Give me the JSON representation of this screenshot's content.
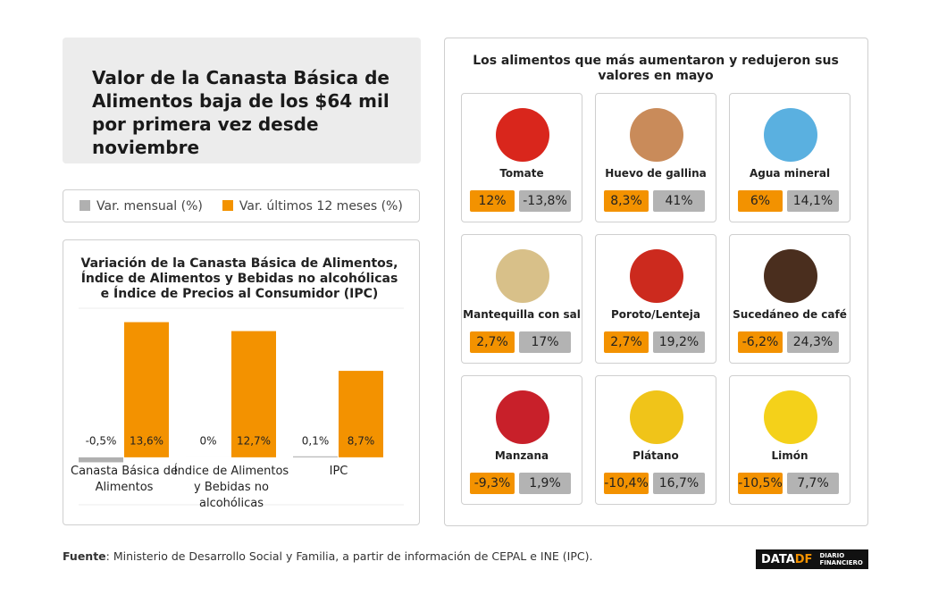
{
  "header": {
    "title": "Valor de la Canasta Básica de Alimentos baja de los $64 mil por primera vez desde noviembre"
  },
  "chart_data": {
    "type": "bar",
    "title": "Variación de la Canasta Básica de Alimentos, Índice de Alimentos y Bebidas no alcohólicas e Índice de Precios al Consumidor (IPC)",
    "categories": [
      "Canasta Básica de Alimentos",
      "Índice de Alimentos y Bebidas no alcohólicas",
      "IPC"
    ],
    "series": [
      {
        "name": "Var. mensual (%)",
        "color": "#b0b0b0",
        "values": [
          -0.5,
          0,
          0.1
        ],
        "value_labels": [
          "-0,5%",
          "0%",
          "0,1%"
        ]
      },
      {
        "name": "Var. últimos 12 meses (%)",
        "color": "#f39200",
        "values": [
          13.6,
          12.7,
          8.7
        ],
        "value_labels": [
          "13,6%",
          "12,7%",
          "8,7%"
        ]
      }
    ],
    "ylim": [
      -1,
      15
    ]
  },
  "foods": {
    "title": "Los alimentos que más aumentaron y redujeron sus valores en mayo",
    "items": [
      {
        "name": "Tomate",
        "orange": "12%",
        "gray": "-13,8%"
      },
      {
        "name": "Huevo de gallina",
        "orange": "8,3%",
        "gray": "41%"
      },
      {
        "name": "Agua mineral",
        "orange": "6%",
        "gray": "14,1%"
      },
      {
        "name": "Mantequilla con sal",
        "orange": "2,7%",
        "gray": "17%"
      },
      {
        "name": "Poroto/Lenteja",
        "orange": "2,7%",
        "gray": "19,2%"
      },
      {
        "name": "Sucedáneo de café",
        "orange": "-6,2%",
        "gray": "24,3%"
      },
      {
        "name": "Manzana",
        "orange": "-9,3%",
        "gray": "1,9%"
      },
      {
        "name": "Plátano",
        "orange": "-10,4%",
        "gray": "16,7%"
      },
      {
        "name": "Limón",
        "orange": "-10,5%",
        "gray": "7,7%"
      }
    ]
  },
  "source": {
    "label": "Fuente",
    "text": ": Ministerio de Desarrollo Social y Familia, a partir de información de CEPAL e INE (IPC)."
  },
  "logo": {
    "data": "DATA",
    "df": "DF",
    "line1": "DIARIO",
    "line2": "FINANCIERO"
  }
}
